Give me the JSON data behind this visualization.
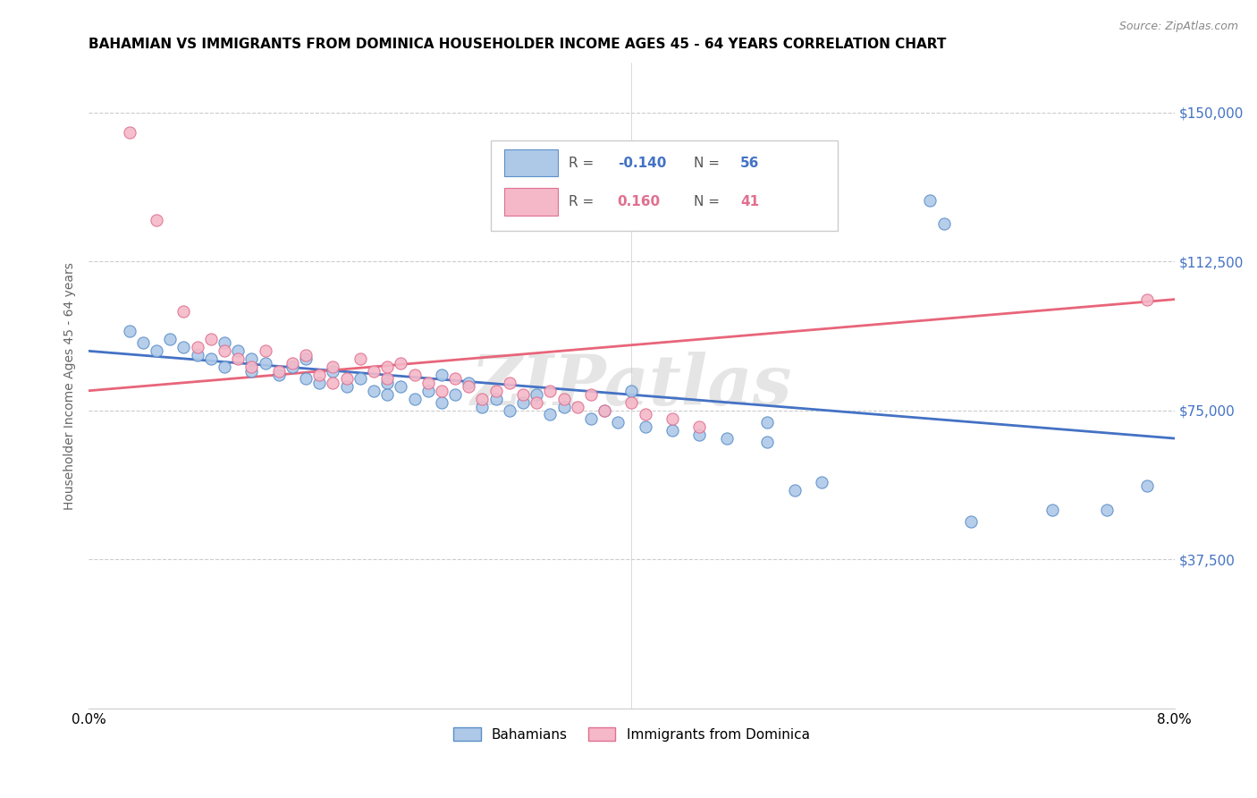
{
  "title": "BAHAMIAN VS IMMIGRANTS FROM DOMINICA HOUSEHOLDER INCOME AGES 45 - 64 YEARS CORRELATION CHART",
  "source": "Source: ZipAtlas.com",
  "ylabel": "Householder Income Ages 45 - 64 years",
  "xmin": 0.0,
  "xmax": 0.08,
  "ymin": 0,
  "ymax": 162500,
  "yticks": [
    37500,
    75000,
    112500,
    150000
  ],
  "ytick_labels": [
    "$37,500",
    "$75,000",
    "$112,500",
    "$150,000"
  ],
  "watermark": "ZIPatlas",
  "legend_blue_r": "-0.140",
  "legend_blue_n": "56",
  "legend_pink_r": "0.160",
  "legend_pink_n": "41",
  "legend_label_blue": "Bahamians",
  "legend_label_pink": "Immigrants from Dominica",
  "blue_color": "#aec9e8",
  "pink_color": "#f4b8c8",
  "blue_edge_color": "#5b8fc9",
  "pink_edge_color": "#e07090",
  "blue_line_color": "#4472c4",
  "pink_line_color": "#e8657a",
  "blue_scatter": [
    [
      0.003,
      95000
    ],
    [
      0.004,
      92000
    ],
    [
      0.005,
      90000
    ],
    [
      0.006,
      93000
    ],
    [
      0.007,
      91000
    ],
    [
      0.008,
      89000
    ],
    [
      0.009,
      88000
    ],
    [
      0.01,
      86000
    ],
    [
      0.01,
      92000
    ],
    [
      0.011,
      90000
    ],
    [
      0.012,
      88000
    ],
    [
      0.012,
      85000
    ],
    [
      0.013,
      87000
    ],
    [
      0.014,
      84000
    ],
    [
      0.015,
      86000
    ],
    [
      0.016,
      83000
    ],
    [
      0.016,
      88000
    ],
    [
      0.017,
      82000
    ],
    [
      0.018,
      85000
    ],
    [
      0.019,
      81000
    ],
    [
      0.02,
      83000
    ],
    [
      0.021,
      80000
    ],
    [
      0.022,
      82000
    ],
    [
      0.022,
      79000
    ],
    [
      0.023,
      81000
    ],
    [
      0.024,
      78000
    ],
    [
      0.025,
      80000
    ],
    [
      0.026,
      84000
    ],
    [
      0.026,
      77000
    ],
    [
      0.027,
      79000
    ],
    [
      0.028,
      82000
    ],
    [
      0.029,
      76000
    ],
    [
      0.03,
      78000
    ],
    [
      0.031,
      75000
    ],
    [
      0.032,
      77000
    ],
    [
      0.033,
      79000
    ],
    [
      0.034,
      74000
    ],
    [
      0.035,
      76000
    ],
    [
      0.037,
      73000
    ],
    [
      0.038,
      75000
    ],
    [
      0.039,
      72000
    ],
    [
      0.04,
      80000
    ],
    [
      0.041,
      71000
    ],
    [
      0.043,
      70000
    ],
    [
      0.045,
      69000
    ],
    [
      0.047,
      68000
    ],
    [
      0.05,
      72000
    ],
    [
      0.05,
      67000
    ],
    [
      0.052,
      55000
    ],
    [
      0.054,
      57000
    ],
    [
      0.062,
      128000
    ],
    [
      0.063,
      122000
    ],
    [
      0.065,
      47000
    ],
    [
      0.071,
      50000
    ],
    [
      0.075,
      50000
    ],
    [
      0.078,
      56000
    ]
  ],
  "pink_scatter": [
    [
      0.003,
      145000
    ],
    [
      0.005,
      123000
    ],
    [
      0.007,
      100000
    ],
    [
      0.008,
      91000
    ],
    [
      0.009,
      93000
    ],
    [
      0.01,
      90000
    ],
    [
      0.011,
      88000
    ],
    [
      0.012,
      86000
    ],
    [
      0.013,
      90000
    ],
    [
      0.014,
      85000
    ],
    [
      0.015,
      87000
    ],
    [
      0.016,
      89000
    ],
    [
      0.017,
      84000
    ],
    [
      0.018,
      82000
    ],
    [
      0.018,
      86000
    ],
    [
      0.019,
      83000
    ],
    [
      0.02,
      88000
    ],
    [
      0.021,
      85000
    ],
    [
      0.022,
      83000
    ],
    [
      0.022,
      86000
    ],
    [
      0.023,
      87000
    ],
    [
      0.024,
      84000
    ],
    [
      0.025,
      82000
    ],
    [
      0.026,
      80000
    ],
    [
      0.027,
      83000
    ],
    [
      0.028,
      81000
    ],
    [
      0.029,
      78000
    ],
    [
      0.03,
      80000
    ],
    [
      0.031,
      82000
    ],
    [
      0.032,
      79000
    ],
    [
      0.033,
      77000
    ],
    [
      0.034,
      80000
    ],
    [
      0.035,
      78000
    ],
    [
      0.036,
      76000
    ],
    [
      0.037,
      79000
    ],
    [
      0.038,
      75000
    ],
    [
      0.04,
      77000
    ],
    [
      0.041,
      74000
    ],
    [
      0.043,
      73000
    ],
    [
      0.045,
      71000
    ],
    [
      0.078,
      103000
    ]
  ],
  "blue_trendline_x": [
    0.0,
    0.08
  ],
  "blue_trendline_y": [
    90000,
    68000
  ],
  "pink_trendline_x": [
    0.0,
    0.08
  ],
  "pink_trendline_y": [
    80000,
    103000
  ]
}
